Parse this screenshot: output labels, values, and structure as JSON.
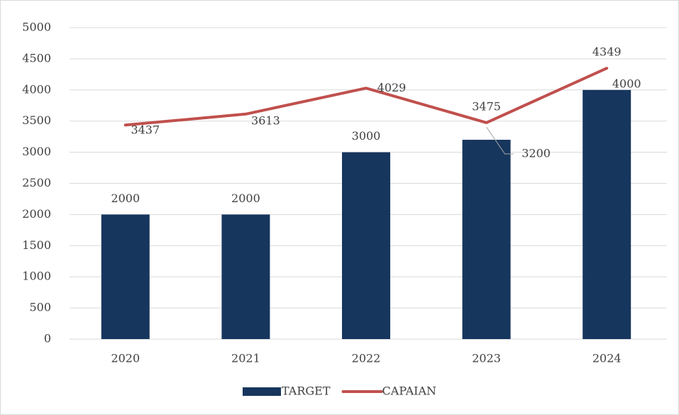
{
  "chart_data": {
    "type": "combo",
    "categories": [
      "2020",
      "2021",
      "2022",
      "2023",
      "2024"
    ],
    "series": [
      {
        "name": "TARGET",
        "type": "bar",
        "color": "#17365d",
        "values": [
          2000,
          2000,
          3000,
          3200,
          4000
        ]
      },
      {
        "name": "CAPAIAN",
        "type": "line",
        "color": "#c0504d",
        "values": [
          3437,
          3613,
          4029,
          3475,
          4349
        ]
      }
    ],
    "ylim": [
      0,
      5000
    ],
    "yticks": [
      0,
      500,
      1000,
      1500,
      2000,
      2500,
      3000,
      3500,
      4000,
      4500,
      5000
    ],
    "grid": true,
    "legend": "bottom"
  }
}
